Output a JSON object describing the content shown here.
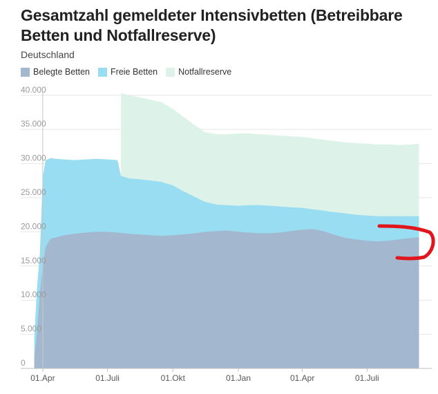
{
  "title": "Gesamtzahl gemeldeter Intensivbetten (Betreibbare Betten und Notfallreserve)",
  "subtitle": "Deutschland",
  "colors": {
    "belegte": "#a3b8cf",
    "freie": "#98ddf2",
    "notfall": "#ddf3e9",
    "grid": "#e6e6e6",
    "annotation": "#e1161c",
    "marker_line": "#c8c8c8"
  },
  "chart_data": {
    "type": "area",
    "stacked": true,
    "legend_position": "top-left",
    "grid": true,
    "ylim": [
      0,
      42000
    ],
    "xlim": [
      "2020-03-01",
      "2021-09-30"
    ],
    "y_ticks": [
      {
        "value": 0,
        "label": "0"
      },
      {
        "value": 5000,
        "label": "5.000"
      },
      {
        "value": 10000,
        "label": "10.000"
      },
      {
        "value": 15000,
        "label": "15.000"
      },
      {
        "value": 20000,
        "label": "20.000"
      },
      {
        "value": 25000,
        "label": "25.000"
      },
      {
        "value": 30000,
        "label": "30.000"
      },
      {
        "value": 35000,
        "label": "35.000"
      },
      {
        "value": 40000,
        "label": "40.000"
      }
    ],
    "x_ticks": [
      {
        "date": "2020-04-01",
        "label": "01.Apr"
      },
      {
        "date": "2020-07-01",
        "label": "01.Juli"
      },
      {
        "date": "2020-10-01",
        "label": "01.Okt"
      },
      {
        "date": "2021-01-01",
        "label": "01.Jan"
      },
      {
        "date": "2021-04-01",
        "label": "01.Apr"
      },
      {
        "date": "2021-07-01",
        "label": "01.Juli"
      }
    ],
    "marker_date": "2020-04-01",
    "series": [
      {
        "name": "Belegte Betten",
        "points": [
          [
            "2020-03-20",
            1500
          ],
          [
            "2020-03-24",
            5500
          ],
          [
            "2020-03-28",
            11000
          ],
          [
            "2020-04-01",
            15000
          ],
          [
            "2020-04-05",
            17800
          ],
          [
            "2020-04-12",
            19000
          ],
          [
            "2020-04-20",
            19200
          ],
          [
            "2020-05-01",
            19500
          ],
          [
            "2020-05-15",
            19700
          ],
          [
            "2020-06-01",
            19900
          ],
          [
            "2020-06-15",
            20000
          ],
          [
            "2020-07-01",
            20000
          ],
          [
            "2020-07-15",
            19900
          ],
          [
            "2020-08-01",
            19700
          ],
          [
            "2020-08-15",
            19600
          ],
          [
            "2020-09-01",
            19500
          ],
          [
            "2020-09-15",
            19400
          ],
          [
            "2020-10-01",
            19500
          ],
          [
            "2020-10-15",
            19600
          ],
          [
            "2020-11-01",
            19800
          ],
          [
            "2020-11-15",
            20000
          ],
          [
            "2020-12-01",
            20100
          ],
          [
            "2020-12-15",
            20200
          ],
          [
            "2021-01-01",
            20000
          ],
          [
            "2021-01-15",
            19900
          ],
          [
            "2021-02-01",
            19800
          ],
          [
            "2021-02-15",
            19800
          ],
          [
            "2021-03-01",
            19900
          ],
          [
            "2021-03-15",
            20100
          ],
          [
            "2021-04-01",
            20300
          ],
          [
            "2021-04-15",
            20400
          ],
          [
            "2021-05-01",
            20100
          ],
          [
            "2021-05-15",
            19600
          ],
          [
            "2021-06-01",
            19100
          ],
          [
            "2021-06-15",
            18900
          ],
          [
            "2021-07-01",
            18700
          ],
          [
            "2021-07-15",
            18600
          ],
          [
            "2021-08-01",
            18700
          ],
          [
            "2021-08-15",
            18900
          ],
          [
            "2021-09-01",
            19100
          ],
          [
            "2021-09-12",
            19200
          ]
        ]
      },
      {
        "name": "Freie Betten",
        "points": [
          [
            "2020-03-20",
            4500
          ],
          [
            "2020-03-24",
            12000
          ],
          [
            "2020-03-28",
            17000
          ],
          [
            "2020-04-01",
            28000
          ],
          [
            "2020-04-05",
            30500
          ],
          [
            "2020-04-12",
            30800
          ],
          [
            "2020-04-20",
            30700
          ],
          [
            "2020-05-01",
            30600
          ],
          [
            "2020-05-15",
            30500
          ],
          [
            "2020-06-01",
            30600
          ],
          [
            "2020-06-15",
            30700
          ],
          [
            "2020-07-01",
            30600
          ],
          [
            "2020-07-15",
            30500
          ],
          [
            "2020-07-20",
            28200
          ],
          [
            "2020-08-01",
            27800
          ],
          [
            "2020-08-15",
            27700
          ],
          [
            "2020-09-01",
            27500
          ],
          [
            "2020-09-15",
            27300
          ],
          [
            "2020-10-01",
            26800
          ],
          [
            "2020-10-15",
            26000
          ],
          [
            "2020-11-01",
            25100
          ],
          [
            "2020-11-15",
            24400
          ],
          [
            "2020-12-01",
            24000
          ],
          [
            "2020-12-15",
            23900
          ],
          [
            "2021-01-01",
            23800
          ],
          [
            "2021-01-15",
            23900
          ],
          [
            "2021-02-01",
            23900
          ],
          [
            "2021-02-15",
            23800
          ],
          [
            "2021-03-01",
            23700
          ],
          [
            "2021-03-15",
            23600
          ],
          [
            "2021-04-01",
            23500
          ],
          [
            "2021-04-15",
            23300
          ],
          [
            "2021-05-01",
            23100
          ],
          [
            "2021-05-15",
            22900
          ],
          [
            "2021-06-01",
            22700
          ],
          [
            "2021-06-15",
            22500
          ],
          [
            "2021-07-01",
            22400
          ],
          [
            "2021-07-15",
            22300
          ],
          [
            "2021-08-01",
            22300
          ],
          [
            "2021-08-15",
            22300
          ],
          [
            "2021-09-01",
            22300
          ],
          [
            "2021-09-12",
            22300
          ]
        ]
      },
      {
        "name": "Notfallreserve",
        "points": [
          [
            "2020-07-20",
            40300
          ],
          [
            "2020-08-01",
            40000
          ],
          [
            "2020-08-15",
            39700
          ],
          [
            "2020-09-01",
            39300
          ],
          [
            "2020-09-15",
            39000
          ],
          [
            "2020-10-01",
            38000
          ],
          [
            "2020-10-15",
            36900
          ],
          [
            "2020-11-01",
            35600
          ],
          [
            "2020-11-15",
            34600
          ],
          [
            "2020-12-01",
            34300
          ],
          [
            "2020-12-15",
            34300
          ],
          [
            "2021-01-01",
            34400
          ],
          [
            "2021-01-15",
            34400
          ],
          [
            "2021-02-01",
            34300
          ],
          [
            "2021-02-15",
            34200
          ],
          [
            "2021-03-01",
            34100
          ],
          [
            "2021-03-15",
            34000
          ],
          [
            "2021-04-01",
            33900
          ],
          [
            "2021-04-15",
            33700
          ],
          [
            "2021-05-01",
            33500
          ],
          [
            "2021-05-15",
            33300
          ],
          [
            "2021-06-01",
            33100
          ],
          [
            "2021-06-15",
            33000
          ],
          [
            "2021-07-01",
            32900
          ],
          [
            "2021-07-15",
            32800
          ],
          [
            "2021-08-01",
            32800
          ],
          [
            "2021-08-15",
            32700
          ],
          [
            "2021-09-01",
            32800
          ],
          [
            "2021-09-12",
            32900
          ]
        ]
      }
    ]
  }
}
